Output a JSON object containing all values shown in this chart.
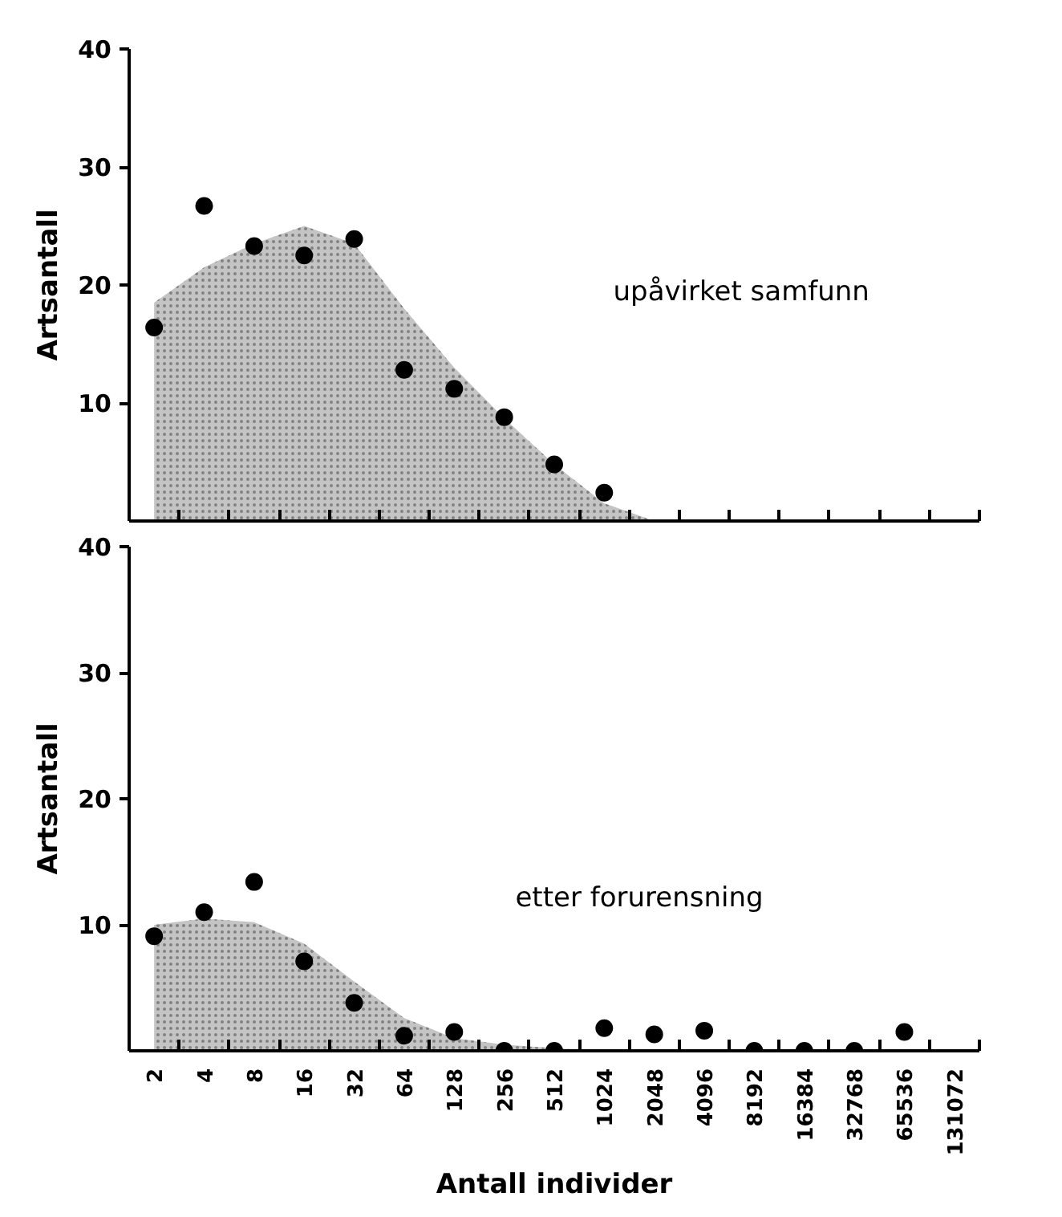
{
  "chart_data": [
    {
      "type": "scatter",
      "ylabel": "Artsantall",
      "categories": [
        "2",
        "4",
        "8",
        "16",
        "32",
        "64",
        "128",
        "256",
        "512",
        "1024",
        "2048",
        "4096",
        "8192",
        "16384",
        "32768",
        "65536",
        "131072"
      ],
      "ylim": [
        0,
        40
      ],
      "yticks": [
        10,
        20,
        30,
        40
      ],
      "tick_labels": "y",
      "grid": false,
      "series": [
        {
          "type": "area",
          "color": "#c4c4c4",
          "values": [
            18.5,
            21.5,
            23.5,
            25,
            23.5,
            18,
            13,
            8.7,
            4.8,
            1.5,
            0,
            null,
            null,
            null,
            null,
            null,
            null
          ]
        },
        {
          "marker": "circle",
          "color": "#000000",
          "values": [
            16.4,
            26.7,
            23.3,
            22.5,
            23.9,
            12.8,
            11.2,
            8.8,
            4.8,
            2.4,
            null,
            null,
            null,
            null,
            null,
            null,
            null
          ]
        }
      ],
      "annotations": [
        "upåvirket samfunn"
      ]
    },
    {
      "type": "scatter",
      "ylabel": "Artsantall",
      "xlabel": "Antall individer",
      "categories": [
        "2",
        "4",
        "8",
        "16",
        "32",
        "64",
        "128",
        "256",
        "512",
        "1024",
        "2048",
        "4096",
        "8192",
        "16384",
        "32768",
        "65536",
        "131072"
      ],
      "ylim": [
        0,
        40
      ],
      "yticks": [
        10,
        20,
        30,
        40
      ],
      "grid": false,
      "series": [
        {
          "type": "area",
          "color": "#c4c4c4",
          "values": [
            10,
            10.5,
            10.2,
            8.5,
            5.5,
            2.6,
            1,
            0.5,
            0.2,
            0,
            null,
            null,
            null,
            null,
            null,
            null,
            null
          ]
        },
        {
          "marker": "circle",
          "color": "#000000",
          "values": [
            9.1,
            11.0,
            13.4,
            7.1,
            3.8,
            1.2,
            1.5,
            0,
            0,
            1.8,
            1.3,
            1.6,
            0,
            0,
            0,
            1.5,
            null
          ]
        }
      ],
      "annotations": [
        "etter forurensning"
      ]
    }
  ]
}
